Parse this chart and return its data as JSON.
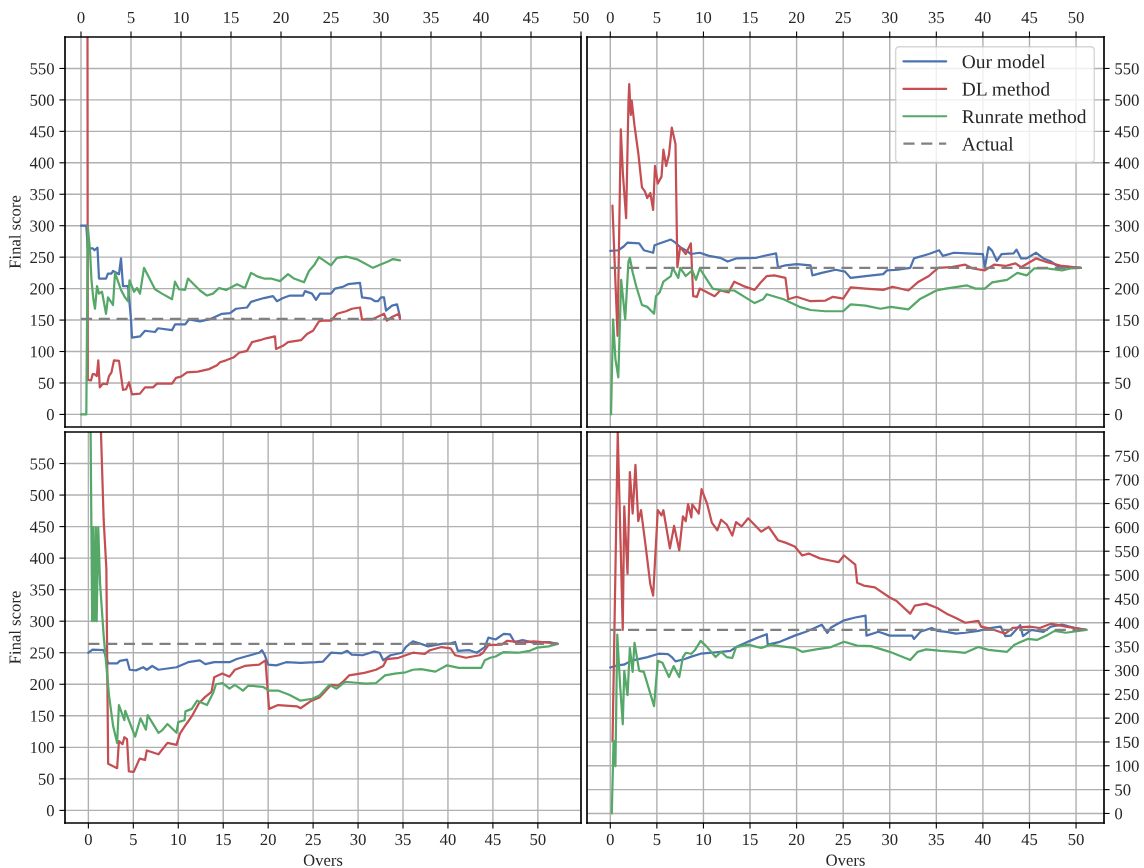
{
  "chart_data": [
    {
      "type": "line",
      "ylabel": "Final score",
      "xlim": [
        -1.6,
        50
      ],
      "xticks": [
        0,
        5,
        10,
        15,
        20,
        25,
        30,
        35,
        40,
        45,
        50
      ],
      "ylim": [
        -20,
        600
      ],
      "yticks": [
        0,
        50,
        100,
        150,
        200,
        250,
        300,
        350,
        400,
        450,
        500,
        550
      ],
      "grid": true,
      "series": [
        {
          "color": "#4c72b0",
          "x": [
            0,
            0.53,
            0.68,
            1.17,
            1.35,
            1.65,
            1.8,
            2.5,
            2.7,
            3.05,
            3.2,
            3.8,
            4.0,
            4.2,
            4.7,
            5.0,
            5.1,
            5.9,
            6.4,
            7.4,
            7.7,
            9.1,
            9.4,
            10.4,
            10.8,
            11.9,
            13.0,
            14.1,
            14.9,
            15.5,
            16.6,
            17.0,
            18.3,
            19.2,
            19.6,
            20.2,
            20.9,
            22.2,
            22.4,
            23.1,
            23.5,
            23.9,
            25.0,
            25.4,
            26.2,
            26.7,
            27.9,
            28.1,
            29.0,
            29.4,
            29.7,
            30.0,
            30.3,
            30.5,
            31.1,
            31.6,
            31.8,
            31.9
          ],
          "values": [
            300,
            300,
            264,
            264,
            261,
            265,
            216,
            216,
            224,
            224,
            228,
            223,
            248,
            204,
            204,
            151,
            122,
            124,
            133,
            131,
            137,
            134,
            143,
            143,
            151,
            148,
            152,
            160,
            161,
            168,
            170,
            179,
            185,
            188,
            180,
            185,
            189,
            189,
            196,
            192,
            182,
            192,
            192,
            200,
            203,
            207,
            209,
            186,
            184,
            180,
            180,
            186,
            186,
            165,
            173,
            175,
            162,
            152
          ]
        },
        {
          "color": "#c44e52",
          "x": [
            0.65,
            0.68,
            1.0,
            1.17,
            1.35,
            1.58,
            1.73,
            1.88,
            2.2,
            2.6,
            2.8,
            3.05,
            3.3,
            3.8,
            4.2,
            4.5,
            4.8,
            5.1,
            5.9,
            6.4,
            7.2,
            7.6,
            9.1,
            9.5,
            10.0,
            10.6,
            11.7,
            12.8,
            13.6,
            13.9,
            14.5,
            15.3,
            15.8,
            16.6,
            17.1,
            17.9,
            18.5,
            19.4,
            19.5,
            20.2,
            20.7,
            22.0,
            22.6,
            23.2,
            23.8,
            24.1,
            25.0,
            25.6,
            26.5,
            27.1,
            27.9,
            28.1,
            29.1,
            30.3,
            30.6,
            31.1,
            31.8,
            31.9
          ],
          "values": [
            600,
            55,
            54,
            64,
            64,
            61,
            86,
            43,
            49,
            48,
            61,
            67,
            86,
            85,
            39,
            40,
            51,
            32,
            33,
            43,
            43,
            49,
            49,
            58,
            60,
            67,
            68,
            72,
            78,
            83,
            86,
            91,
            98,
            101,
            115,
            118,
            121,
            124,
            104,
            109,
            115,
            118,
            128,
            133,
            148,
            149,
            149,
            160,
            164,
            168,
            170,
            151,
            151,
            160,
            149,
            155,
            160,
            152
          ]
        },
        {
          "color": "#55a868",
          "x": [
            0,
            0.53,
            0.68,
            0.9,
            1.05,
            1.24,
            1.4,
            1.6,
            1.8,
            2.1,
            2.5,
            2.7,
            2.95,
            3.2,
            3.4,
            4.0,
            4.4,
            4.7,
            4.85,
            5.3,
            5.6,
            5.9,
            6.3,
            7.4,
            8.1,
            9.1,
            9.4,
            9.8,
            10.4,
            10.7,
            11.9,
            12.6,
            13.2,
            13.8,
            14.5,
            14.9,
            15.6,
            16.4,
            17.0,
            17.7,
            18.3,
            19.0,
            19.9,
            20.7,
            21.3,
            22.3,
            22.8,
            23.3,
            23.8,
            25.0,
            25.6,
            26.5,
            27.7,
            29.2,
            29.9,
            30.7,
            31.2,
            31.9
          ],
          "values": [
            0,
            0,
            299,
            261,
            213,
            183,
            168,
            204,
            192,
            195,
            160,
            186,
            180,
            174,
            225,
            198,
            186,
            180,
            213,
            195,
            201,
            192,
            233,
            199,
            192,
            183,
            211,
            199,
            198,
            216,
            197,
            189,
            192,
            201,
            198,
            201,
            207,
            201,
            225,
            219,
            216,
            216,
            212,
            223,
            216,
            210,
            228,
            237,
            250,
            237,
            249,
            251,
            246,
            233,
            238,
            243,
            247,
            245
          ]
        },
        {
          "type": "line",
          "line_style": "dashed",
          "color": "#808080",
          "x": [
            0,
            31.9
          ],
          "values": [
            152,
            152
          ]
        }
      ]
    },
    {
      "type": "line",
      "xlim": [
        -2.5,
        53
      ],
      "xticks": [
        0,
        5,
        10,
        15,
        20,
        25,
        30,
        35,
        40,
        45,
        50
      ],
      "ylim": [
        -20,
        600
      ],
      "yticks": [
        0,
        50,
        100,
        150,
        200,
        250,
        300,
        350,
        400,
        450,
        500,
        550
      ],
      "grid": true,
      "legend": "top right",
      "series": [
        {
          "name": "Our model",
          "color": "#4c72b0",
          "x": [
            0,
            0.86,
            1.44,
            1.83,
            3.1,
            3.6,
            4.6,
            4.75,
            5.5,
            6.5,
            7.0,
            7.5,
            8.1,
            8.65,
            9.6,
            10.6,
            11.8,
            12.6,
            13.5,
            15.7,
            16.8,
            17.8,
            18.0,
            18.8,
            20.0,
            21.5,
            21.7,
            22.7,
            24.2,
            25.2,
            25.8,
            27.4,
            29.3,
            29.7,
            30.9,
            32.2,
            32.6,
            34.2,
            35.3,
            35.7,
            36.9,
            38.3,
            40.0,
            40.2,
            40.6,
            41.0,
            41.5,
            42.0,
            43.3,
            43.6,
            44.1,
            44.7,
            45.7,
            46.5,
            47.2,
            48.0,
            49.2,
            50.5
          ],
          "values": [
            260,
            261,
            267,
            273,
            272,
            261,
            257,
            269,
            273,
            278,
            273,
            266,
            261,
            255,
            257,
            252,
            249,
            243,
            248,
            249,
            253,
            256,
            234,
            237,
            239,
            237,
            221,
            225,
            230,
            227,
            217,
            220,
            223,
            229,
            230,
            233,
            248,
            255,
            261,
            252,
            257,
            256,
            255,
            233,
            266,
            260,
            244,
            255,
            256,
            262,
            248,
            248,
            257,
            248,
            244,
            236,
            234,
            233
          ]
        },
        {
          "name": "DL method",
          "color": "#c44e52",
          "x": [
            0.23,
            0.78,
            1.13,
            1.36,
            1.7,
            1.95,
            2.03,
            2.2,
            2.3,
            2.6,
            3.0,
            3.4,
            3.7,
            3.97,
            4.3,
            4.6,
            4.8,
            5.1,
            5.5,
            5.7,
            6.0,
            6.3,
            6.6,
            7.0,
            7.2,
            7.5,
            8.1,
            8.65,
            8.9,
            9.3,
            9.6,
            11.2,
            11.8,
            12.7,
            13.3,
            14.3,
            15.5,
            16.1,
            16.8,
            17.6,
            18.8,
            19.1,
            20.0,
            21.5,
            23.1,
            23.9,
            25.0,
            25.8,
            27.4,
            29.3,
            30.3,
            32.0,
            33.0,
            34.2,
            35.2,
            36.5,
            38.1,
            38.9,
            40.2,
            41.2,
            42.4,
            43.5,
            44.1,
            45.7,
            46.9,
            48.5,
            50.5
          ],
          "values": [
            332,
            125,
            453,
            381,
            312,
            496,
            525,
            476,
            499,
            459,
            416,
            361,
            355,
            344,
            352,
            325,
            395,
            367,
            378,
            421,
            395,
            413,
            456,
            430,
            234,
            266,
            255,
            272,
            188,
            187,
            200,
            188,
            197,
            194,
            211,
            204,
            198,
            209,
            220,
            221,
            217,
            183,
            187,
            180,
            181,
            187,
            184,
            202,
            200,
            198,
            203,
            197,
            210,
            220,
            233,
            234,
            238,
            232,
            229,
            238,
            236,
            240,
            234,
            248,
            242,
            236,
            233
          ]
        },
        {
          "name": "Runrate method",
          "color": "#55a868",
          "x": [
            0.08,
            0.3,
            0.55,
            0.86,
            1.17,
            1.6,
            1.95,
            2.1,
            2.4,
            2.8,
            3.4,
            3.97,
            4.7,
            4.9,
            5.3,
            5.7,
            6.5,
            6.7,
            7.3,
            7.5,
            8.1,
            8.8,
            9.2,
            9.6,
            11.0,
            12.0,
            13.3,
            14.5,
            15.5,
            16.4,
            16.8,
            18.6,
            20.3,
            21.5,
            23.1,
            25.0,
            25.8,
            27.4,
            29.0,
            30.1,
            32.0,
            33.2,
            35.0,
            36.0,
            38.3,
            39.2,
            40.2,
            41.0,
            42.6,
            43.7,
            44.7,
            45.5,
            46.9,
            48.5,
            49.4,
            50.5
          ],
          "values": [
            0,
            151,
            88,
            59,
            214,
            151,
            243,
            249,
            226,
            203,
            174,
            171,
            160,
            188,
            194,
            211,
            220,
            233,
            217,
            233,
            220,
            229,
            214,
            232,
            200,
            197,
            197,
            186,
            177,
            183,
            191,
            183,
            171,
            166,
            164,
            164,
            175,
            173,
            168,
            171,
            167,
            183,
            197,
            200,
            205,
            200,
            200,
            210,
            214,
            225,
            221,
            232,
            232,
            229,
            232,
            233
          ]
        },
        {
          "name": "Actual",
          "type": "line",
          "line_style": "dashed",
          "color": "#808080",
          "x": [
            0,
            50.5
          ],
          "values": [
            233,
            233
          ]
        }
      ]
    },
    {
      "type": "line",
      "xlabel": "Overs",
      "ylabel": "Final score",
      "xlim": [
        -2.6,
        54.8
      ],
      "xticks": [
        0,
        5,
        10,
        15,
        20,
        25,
        30,
        35,
        40,
        45,
        50
      ],
      "ylim": [
        -20,
        600
      ],
      "yticks": [
        0,
        50,
        100,
        150,
        200,
        250,
        300,
        350,
        400,
        450,
        500,
        550
      ],
      "grid": true,
      "series": [
        {
          "color": "#4c72b0",
          "x": [
            0,
            0.46,
            1.7,
            2.2,
            3.2,
            3.5,
            4.3,
            4.6,
            5.3,
            6.1,
            6.5,
            7.1,
            7.8,
            9.8,
            11.1,
            12.4,
            13.0,
            14.0,
            15.7,
            16.5,
            18.0,
            19.0,
            19.3,
            19.6,
            20.0,
            20.9,
            22.0,
            23.6,
            25.3,
            26.1,
            27.0,
            28.2,
            28.8,
            29.3,
            30.5,
            31.8,
            32.4,
            32.8,
            33.6,
            34.9,
            35.3,
            36.1,
            36.8,
            37.8,
            39.3,
            40.3,
            40.8,
            41.1,
            42.4,
            43.2,
            44.1,
            44.5,
            45.3,
            46.2,
            46.9,
            47.4,
            48.3,
            49.5,
            51.2,
            52.2
          ],
          "values": [
            250,
            255,
            254,
            233,
            233,
            237,
            239,
            223,
            222,
            227,
            223,
            229,
            223,
            227,
            235,
            238,
            232,
            235,
            235,
            240,
            246,
            250,
            254,
            247,
            231,
            230,
            235,
            234,
            235,
            236,
            250,
            249,
            253,
            247,
            246,
            252,
            250,
            238,
            246,
            250,
            259,
            268,
            265,
            260,
            264,
            265,
            267,
            253,
            254,
            250,
            259,
            274,
            271,
            280,
            279,
            267,
            270,
            266,
            267,
            264
          ]
        },
        {
          "color": "#c44e52",
          "x": [
            1.4,
            1.7,
            2.0,
            2.2,
            3.2,
            3.4,
            3.8,
            4.0,
            4.3,
            4.5,
            5.05,
            5.7,
            6.3,
            6.5,
            7.8,
            8.8,
            9.8,
            10.2,
            10.9,
            11.5,
            12.3,
            13.0,
            13.7,
            14.0,
            14.9,
            15.7,
            16.3,
            17.4,
            19.0,
            19.7,
            20.1,
            21.1,
            23.2,
            23.6,
            24.7,
            25.7,
            27.0,
            27.8,
            28.4,
            29.0,
            30.7,
            32.0,
            32.8,
            33.2,
            34.5,
            35.3,
            36.1,
            37.4,
            38.0,
            39.3,
            40.3,
            40.8,
            42.0,
            43.5,
            43.9,
            44.5,
            46.0,
            46.6,
            48.3,
            49.5,
            51.2,
            52.2
          ],
          "values": [
            600,
            461,
            384,
            74,
            67,
            110,
            105,
            116,
            113,
            62,
            61,
            82,
            80,
            95,
            89,
            107,
            104,
            122,
            137,
            149,
            170,
            180,
            188,
            211,
            217,
            212,
            223,
            229,
            231,
            238,
            161,
            167,
            165,
            162,
            173,
            179,
            199,
            198,
            205,
            214,
            218,
            223,
            229,
            240,
            242,
            246,
            250,
            248,
            254,
            259,
            257,
            246,
            242,
            246,
            250,
            262,
            263,
            269,
            266,
            268,
            266,
            264
          ]
        },
        {
          "color": "#55a868",
          "x": [
            0.25,
            0.42,
            0.54,
            0.67,
            0.83,
            0.92,
            1.1,
            1.3,
            1.7,
            2.3,
            2.75,
            3.2,
            3.4,
            4.0,
            4.1,
            5.2,
            5.8,
            6.4,
            6.6,
            7.8,
            8.2,
            8.8,
            9.8,
            10.0,
            10.7,
            10.8,
            11.5,
            12.1,
            13.2,
            13.9,
            14.2,
            14.9,
            15.7,
            16.3,
            17.2,
            17.8,
            19.4,
            20.1,
            21.1,
            22.4,
            23.6,
            24.9,
            25.7,
            26.8,
            27.6,
            28.6,
            30.1,
            30.9,
            32.0,
            33.0,
            34.1,
            35.3,
            36.1,
            37.0,
            38.6,
            39.9,
            41.2,
            43.7,
            44.1,
            44.7,
            45.3,
            46.2,
            47.8,
            49.1,
            49.9,
            51.2,
            52.2
          ],
          "values": [
            600,
            300,
            449,
            300,
            449,
            300,
            449,
            360,
            277,
            182,
            134,
            107,
            167,
            143,
            158,
            117,
            146,
            128,
            151,
            123,
            127,
            137,
            123,
            140,
            143,
            157,
            161,
            174,
            167,
            187,
            200,
            202,
            193,
            199,
            190,
            198,
            196,
            190,
            190,
            183,
            174,
            177,
            182,
            199,
            193,
            204,
            202,
            201,
            202,
            214,
            217,
            219,
            223,
            224,
            220,
            230,
            226,
            226,
            238,
            242,
            244,
            251,
            250,
            253,
            258,
            260,
            264
          ]
        },
        {
          "type": "line",
          "line_style": "dashed",
          "color": "#808080",
          "x": [
            0,
            52.2
          ],
          "values": [
            264,
            264
          ]
        }
      ]
    },
    {
      "type": "line",
      "xlabel": "Overs",
      "xlim": [
        -2.5,
        53
      ],
      "xticks": [
        0,
        5,
        10,
        15,
        20,
        25,
        30,
        35,
        40,
        45,
        50
      ],
      "ylim": [
        -20,
        800
      ],
      "yticks": [
        0,
        50,
        100,
        150,
        200,
        250,
        300,
        350,
        400,
        450,
        500,
        550,
        600,
        650,
        700,
        750
      ],
      "grid": true,
      "series": [
        {
          "color": "#4c72b0",
          "x": [
            0,
            0.87,
            1.46,
            2.2,
            4.0,
            5.2,
            6.2,
            6.6,
            7.0,
            8.0,
            8.7,
            9.7,
            11.9,
            12.9,
            13.5,
            14.3,
            15.0,
            16.0,
            16.8,
            16.9,
            18.2,
            19.8,
            21.0,
            21.7,
            22.7,
            23.3,
            23.7,
            25.1,
            26.3,
            27.4,
            27.5,
            28.8,
            30.0,
            32.4,
            32.6,
            33.3,
            34.5,
            35.1,
            36.1,
            37.1,
            38.1,
            39.5,
            40.8,
            41.9,
            42.4,
            43.0,
            44.0,
            44.3,
            45.2,
            46.5,
            47.3,
            48.5,
            49.9,
            51.1
          ],
          "values": [
            306,
            311,
            312,
            320,
            328,
            335,
            334,
            328,
            319,
            324,
            329,
            335,
            339,
            341,
            349,
            356,
            362,
            370,
            376,
            354,
            360,
            373,
            381,
            387,
            396,
            379,
            390,
            405,
            411,
            415,
            373,
            381,
            373,
            373,
            366,
            381,
            389,
            383,
            381,
            377,
            379,
            383,
            389,
            392,
            372,
            373,
            395,
            372,
            385,
            381,
            392,
            396,
            389,
            385
          ]
        },
        {
          "color": "#c44e52",
          "x": [
            0.24,
            0.4,
            0.8,
            1.34,
            1.5,
            1.85,
            2.1,
            2.4,
            2.7,
            3.0,
            3.3,
            3.8,
            4.3,
            4.6,
            5.1,
            5.5,
            5.7,
            6.4,
            6.85,
            7.4,
            7.8,
            8.1,
            8.35,
            8.7,
            8.8,
            9.5,
            9.8,
            10.4,
            10.9,
            11.5,
            11.9,
            12.5,
            13.1,
            13.5,
            14.1,
            14.8,
            16.2,
            17.0,
            18.0,
            18.8,
            19.8,
            20.6,
            21.3,
            22.5,
            23.7,
            24.5,
            25.1,
            26.3,
            26.5,
            27.2,
            28.4,
            30.0,
            30.7,
            32.2,
            32.7,
            33.9,
            35.1,
            36.1,
            37.1,
            38.1,
            39.5,
            39.8,
            40.9,
            42.4,
            43.2,
            45.0,
            46.1,
            47.3,
            48.9,
            51.1
          ],
          "values": [
            152,
            331,
            800,
            385,
            644,
            503,
            716,
            629,
            731,
            613,
            636,
            560,
            480,
            457,
            636,
            625,
            636,
            556,
            603,
            552,
            623,
            613,
            649,
            621,
            648,
            629,
            680,
            649,
            610,
            594,
            616,
            606,
            583,
            611,
            602,
            619,
            591,
            601,
            573,
            568,
            560,
            541,
            545,
            535,
            530,
            527,
            541,
            522,
            484,
            478,
            474,
            453,
            446,
            419,
            436,
            440,
            431,
            419,
            410,
            400,
            404,
            392,
            387,
            377,
            389,
            392,
            389,
            398,
            392,
            385
          ]
        },
        {
          "color": "#55a868",
          "x": [
            0.16,
            0.35,
            0.55,
            0.75,
            1.06,
            1.34,
            1.5,
            1.85,
            2.1,
            2.4,
            2.6,
            3.1,
            3.6,
            4.7,
            5.1,
            5.6,
            6.3,
            6.8,
            7.4,
            7.8,
            8.1,
            8.7,
            9.1,
            9.7,
            10.3,
            11.3,
            11.9,
            12.5,
            13.1,
            13.5,
            14.8,
            16.2,
            17.2,
            18.2,
            19.8,
            20.6,
            22.1,
            23.7,
            25.1,
            26.5,
            28.0,
            30.0,
            32.2,
            33.0,
            33.9,
            35.5,
            37.1,
            38.1,
            39.5,
            40.6,
            42.6,
            43.4,
            44.8,
            45.8,
            47.0,
            47.7,
            48.9,
            51.1
          ],
          "values": [
            0,
            152,
            99,
            375,
            267,
            187,
            299,
            248,
            347,
            297,
            358,
            299,
            297,
            225,
            320,
            316,
            286,
            309,
            286,
            328,
            337,
            335,
            343,
            362,
            351,
            328,
            339,
            328,
            326,
            349,
            354,
            347,
            354,
            351,
            347,
            339,
            344,
            349,
            360,
            352,
            351,
            339,
            322,
            339,
            344,
            341,
            339,
            337,
            349,
            343,
            339,
            354,
            366,
            364,
            375,
            383,
            379,
            385
          ]
        },
        {
          "type": "line",
          "line_style": "dashed",
          "color": "#808080",
          "x": [
            0,
            51.1
          ],
          "values": [
            385,
            385
          ]
        }
      ]
    }
  ]
}
